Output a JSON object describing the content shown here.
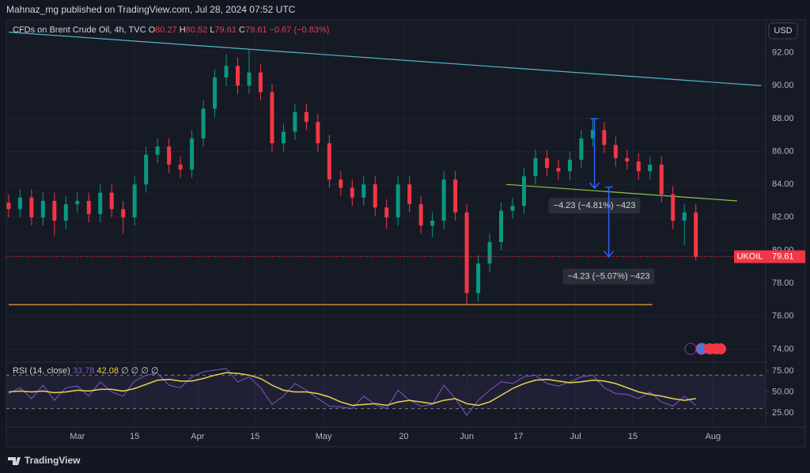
{
  "header": {
    "byline": "Mahnaz_mg published on TradingView.com, Jul 28, 2024 07:52 UTC",
    "currency": "USD",
    "footer": "TradingView"
  },
  "chart_data": [
    {
      "type": "candlestick",
      "title": "CFDs on Brent Crude Oil, 4h, TVC",
      "ohlc_legend": [
        {
          "label": "O",
          "value": 80.27
        },
        {
          "label": "H",
          "value": 80.52
        },
        {
          "label": "L",
          "value": 79.61
        },
        {
          "label": "C",
          "value": 79.61
        }
      ],
      "change": "−0.67 (−0.83%)",
      "symbol": "UKOIL",
      "last_price": {
        "value": 79.61,
        "label": "79.61"
      },
      "up_color": "#089981",
      "down_color": "#f23645",
      "x": [
        -12,
        -10,
        -8,
        -6,
        -4,
        -2,
        0,
        2,
        4,
        6,
        8,
        10,
        12,
        14,
        16,
        18,
        20,
        22,
        24,
        26,
        28,
        30,
        32,
        34,
        36,
        38,
        40,
        42,
        44,
        46,
        48,
        50,
        52,
        54,
        56,
        58,
        60,
        62,
        64,
        66,
        68,
        70,
        72,
        74,
        76,
        78,
        80,
        82,
        84,
        86,
        88,
        90,
        92,
        94,
        96,
        98,
        100,
        102,
        104,
        106,
        108
      ],
      "open": [
        82.9,
        82.5,
        83.2,
        82.0,
        83.0,
        81.8,
        82.8,
        83.0,
        82.2,
        83.5,
        82.5,
        82.0,
        84.0,
        85.8,
        86.3,
        85.2,
        84.9,
        86.8,
        88.6,
        90.5,
        91.2,
        90.0,
        90.8,
        89.6,
        86.5,
        87.2,
        88.4,
        87.8,
        86.5,
        84.3,
        83.8,
        83.2,
        84.0,
        82.6,
        82.0,
        84.0,
        82.8,
        81.5,
        81.8,
        84.3,
        82.3,
        77.4,
        79.2,
        80.5,
        82.4,
        82.7,
        84.5,
        85.6,
        85.0,
        84.8,
        85.5,
        86.8,
        87.3,
        86.4,
        85.6,
        85.4,
        84.8,
        85.2,
        83.4,
        81.8,
        82.3
      ],
      "high": [
        83.4,
        83.7,
        83.7,
        83.5,
        83.5,
        83.3,
        83.5,
        83.5,
        84.0,
        84.0,
        83.0,
        84.5,
        86.3,
        86.8,
        86.8,
        85.7,
        87.3,
        89.1,
        91.0,
        91.9,
        91.7,
        92.2,
        91.3,
        90.1,
        87.7,
        88.9,
        88.9,
        88.3,
        87.0,
        84.8,
        84.3,
        84.5,
        84.5,
        83.1,
        84.5,
        84.5,
        83.3,
        82.3,
        84.8,
        84.8,
        82.8,
        79.7,
        81.0,
        82.9,
        83.2,
        85.0,
        86.1,
        86.1,
        85.5,
        86.0,
        87.3,
        88.0,
        87.8,
        86.9,
        86.1,
        85.9,
        85.7,
        85.7,
        83.9,
        82.8,
        82.8
      ],
      "low": [
        82.0,
        82.0,
        81.5,
        81.5,
        80.9,
        81.3,
        82.3,
        81.7,
        81.7,
        82.0,
        81.0,
        81.5,
        83.5,
        85.3,
        84.7,
        84.4,
        84.4,
        86.3,
        88.1,
        90.0,
        89.5,
        89.5,
        89.1,
        86.0,
        86.0,
        86.7,
        87.3,
        86.0,
        83.8,
        83.3,
        82.7,
        82.7,
        82.1,
        81.3,
        81.5,
        82.3,
        81.0,
        80.8,
        81.3,
        81.8,
        76.7,
        76.9,
        78.7,
        80.0,
        81.9,
        82.2,
        84.0,
        84.5,
        84.3,
        84.3,
        85.0,
        86.3,
        85.9,
        85.1,
        84.9,
        84.3,
        84.3,
        82.9,
        81.3,
        80.3,
        79.4
      ],
      "close": [
        82.5,
        83.2,
        82.0,
        83.0,
        81.8,
        82.8,
        83.0,
        82.2,
        83.5,
        82.5,
        82.0,
        84.0,
        85.8,
        86.3,
        85.2,
        84.9,
        86.8,
        88.6,
        90.5,
        91.2,
        90.0,
        90.8,
        89.6,
        86.5,
        87.2,
        88.4,
        87.8,
        86.5,
        84.3,
        83.8,
        83.2,
        84.0,
        82.6,
        82.0,
        84.0,
        82.8,
        81.5,
        81.8,
        84.3,
        82.3,
        77.4,
        79.2,
        80.5,
        82.4,
        82.7,
        84.5,
        85.6,
        85.0,
        84.8,
        85.5,
        86.8,
        87.3,
        86.4,
        85.6,
        85.4,
        84.8,
        85.2,
        83.4,
        81.8,
        82.3,
        79.61
      ],
      "xlim": [
        -12.4,
        120.2
      ],
      "ylim": [
        73.2,
        94.0
      ],
      "yticks": [
        {
          "value": 74,
          "label": "74.00"
        },
        {
          "value": 76,
          "label": "76.00"
        },
        {
          "value": 78,
          "label": "78.00"
        },
        {
          "value": 80,
          "label": "80.00"
        },
        {
          "value": 82,
          "label": "82.00"
        },
        {
          "value": 84,
          "label": "84.00"
        },
        {
          "value": 86,
          "label": "86.00"
        },
        {
          "value": 88,
          "label": "88.00"
        },
        {
          "value": 90,
          "label": "90.00"
        },
        {
          "value": 92,
          "label": "92.00"
        }
      ],
      "xticks": [
        {
          "value": 0,
          "label": "Mar"
        },
        {
          "value": 10,
          "label": "15"
        },
        {
          "value": 21,
          "label": "Apr"
        },
        {
          "value": 31,
          "label": "15"
        },
        {
          "value": 43,
          "label": "May"
        },
        {
          "value": 57,
          "label": "20"
        },
        {
          "value": 68,
          "label": "Jun"
        },
        {
          "value": 77,
          "label": "17"
        },
        {
          "value": 87,
          "label": "Jul"
        },
        {
          "value": 97,
          "label": "15"
        },
        {
          "value": 111,
          "label": "Aug"
        }
      ],
      "lines": [
        {
          "x": [
            -12,
            119.4
          ],
          "y": [
            93.25,
            90.0
          ],
          "color": "#4fb7c9"
        },
        {
          "x": [
            74.9,
            115.2
          ],
          "y": [
            84.0,
            83.0
          ],
          "color": "#8bc34a"
        },
        {
          "x": [
            -12,
            100.4
          ],
          "y": [
            76.7,
            76.7
          ],
          "color": "#f0a030"
        }
      ],
      "measures": [
        {
          "x": 90.3,
          "from": 88.0,
          "to": 83.77,
          "label": "−4.23 (−4.81%) −423"
        },
        {
          "x": 92.8,
          "from": 83.84,
          "to": 79.61,
          "label": "−4.23 (−5.07%) −423"
        }
      ]
    },
    {
      "type": "line",
      "title": "RSI (14, close)",
      "placeholders": "∅ ∅ ∅ ∅",
      "series": [
        {
          "color": "#7e57c2",
          "last_label": "33.78",
          "values": [
            48,
            55,
            42,
            58,
            40,
            55,
            57,
            45,
            62,
            50,
            45,
            63,
            70,
            72,
            58,
            55,
            68,
            74,
            76,
            78,
            62,
            68,
            55,
            35,
            45,
            60,
            52,
            42,
            33,
            32,
            30,
            45,
            35,
            30,
            52,
            40,
            33,
            35,
            58,
            42,
            22,
            40,
            52,
            62,
            60,
            68,
            70,
            60,
            57,
            62,
            68,
            70,
            55,
            48,
            47,
            42,
            50,
            38,
            33,
            45,
            33.78
          ]
        },
        {
          "color": "#e8d44d",
          "last_label": "42.08",
          "values": [
            50,
            51,
            50,
            51,
            49,
            50,
            52,
            51,
            53,
            53,
            51,
            54,
            59,
            64,
            65,
            63,
            63,
            66,
            70,
            73,
            72,
            70,
            66,
            58,
            52,
            50,
            50,
            48,
            44,
            38,
            34,
            35,
            36,
            34,
            38,
            40,
            38,
            36,
            40,
            42,
            36,
            34,
            38,
            46,
            54,
            60,
            64,
            65,
            63,
            61,
            62,
            64,
            63,
            60,
            55,
            50,
            47,
            45,
            42,
            40,
            42.08
          ]
        }
      ],
      "ylim": [
        12.7,
        83.5
      ],
      "yticks": [
        {
          "value": 25,
          "label": "25.00"
        },
        {
          "value": 50,
          "label": "50.00"
        },
        {
          "value": 75,
          "label": "75.00"
        }
      ],
      "band": [
        30,
        70
      ]
    }
  ]
}
